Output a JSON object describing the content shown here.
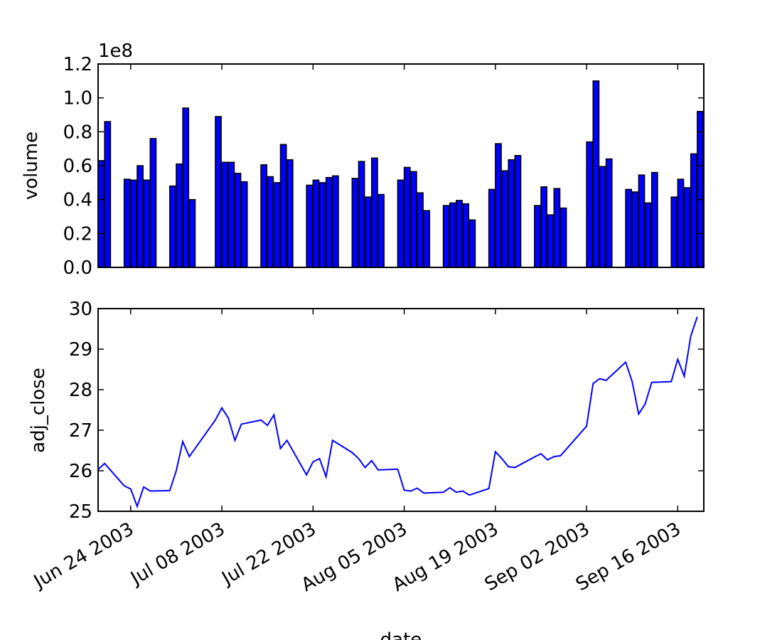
{
  "chart_data": [
    {
      "type": "bar",
      "ylabel": "volume",
      "y_offset_label": "1e8",
      "color": "#0000ff",
      "x": [
        "2003-06-19",
        "2003-06-20",
        "2003-06-23",
        "2003-06-24",
        "2003-06-25",
        "2003-06-26",
        "2003-06-27",
        "2003-06-30",
        "2003-07-01",
        "2003-07-02",
        "2003-07-03",
        "2003-07-07",
        "2003-07-08",
        "2003-07-09",
        "2003-07-10",
        "2003-07-11",
        "2003-07-14",
        "2003-07-15",
        "2003-07-16",
        "2003-07-17",
        "2003-07-18",
        "2003-07-21",
        "2003-07-22",
        "2003-07-23",
        "2003-07-24",
        "2003-07-25",
        "2003-07-28",
        "2003-07-29",
        "2003-07-30",
        "2003-07-31",
        "2003-08-01",
        "2003-08-04",
        "2003-08-05",
        "2003-08-06",
        "2003-08-07",
        "2003-08-08",
        "2003-08-11",
        "2003-08-12",
        "2003-08-13",
        "2003-08-14",
        "2003-08-15",
        "2003-08-18",
        "2003-08-19",
        "2003-08-20",
        "2003-08-21",
        "2003-08-22",
        "2003-08-25",
        "2003-08-26",
        "2003-08-27",
        "2003-08-28",
        "2003-08-29",
        "2003-09-02",
        "2003-09-03",
        "2003-09-04",
        "2003-09-05",
        "2003-09-08",
        "2003-09-09",
        "2003-09-10",
        "2003-09-11",
        "2003-09-12",
        "2003-09-15",
        "2003-09-16",
        "2003-09-17",
        "2003-09-18",
        "2003-09-19"
      ],
      "values": [
        63000000,
        86000000,
        52000000,
        51500000,
        60000000,
        51500000,
        76000000,
        48000000,
        61000000,
        94000000,
        40000000,
        89000000,
        62000000,
        62000000,
        55500000,
        50500000,
        60500000,
        53500000,
        50000000,
        72500000,
        63500000,
        48500000,
        51500000,
        50000000,
        53000000,
        54000000,
        52500000,
        62500000,
        41500000,
        64500000,
        43000000,
        51500000,
        59000000,
        56500000,
        44000000,
        33500000,
        36500000,
        38000000,
        39500000,
        37500000,
        28000000,
        46000000,
        73000000,
        57000000,
        63500000,
        66000000,
        36500000,
        47500000,
        31000000,
        46500000,
        35000000,
        74000000,
        110000000,
        59500000,
        64000000,
        46000000,
        44500000,
        54500000,
        38000000,
        56000000,
        41500000,
        52000000,
        47000000,
        67000000,
        92000000
      ],
      "xlim": [
        "2003-06-19",
        "2003-09-20"
      ],
      "ylim": [
        0,
        120000000
      ],
      "yticks": [
        {
          "value": 0,
          "label": "0.0"
        },
        {
          "value": 20000000,
          "label": "0.2"
        },
        {
          "value": 40000000,
          "label": "0.4"
        },
        {
          "value": 60000000,
          "label": "0.6"
        },
        {
          "value": 80000000,
          "label": "0.8"
        },
        {
          "value": 100000000,
          "label": "1.0"
        },
        {
          "value": 120000000,
          "label": "1.2"
        }
      ]
    },
    {
      "type": "line",
      "ylabel": "adj_close",
      "xlabel": "date",
      "color": "#0000ff",
      "x": [
        "2003-06-19",
        "2003-06-20",
        "2003-06-23",
        "2003-06-24",
        "2003-06-25",
        "2003-06-26",
        "2003-06-27",
        "2003-06-30",
        "2003-07-01",
        "2003-07-02",
        "2003-07-03",
        "2003-07-07",
        "2003-07-08",
        "2003-07-09",
        "2003-07-10",
        "2003-07-11",
        "2003-07-14",
        "2003-07-15",
        "2003-07-16",
        "2003-07-17",
        "2003-07-18",
        "2003-07-21",
        "2003-07-22",
        "2003-07-23",
        "2003-07-24",
        "2003-07-25",
        "2003-07-28",
        "2003-07-29",
        "2003-07-30",
        "2003-07-31",
        "2003-08-01",
        "2003-08-04",
        "2003-08-05",
        "2003-08-06",
        "2003-08-07",
        "2003-08-08",
        "2003-08-11",
        "2003-08-12",
        "2003-08-13",
        "2003-08-14",
        "2003-08-15",
        "2003-08-18",
        "2003-08-19",
        "2003-08-20",
        "2003-08-21",
        "2003-08-22",
        "2003-08-25",
        "2003-08-26",
        "2003-08-27",
        "2003-08-28",
        "2003-08-29",
        "2003-09-02",
        "2003-09-03",
        "2003-09-04",
        "2003-09-05",
        "2003-09-08",
        "2003-09-09",
        "2003-09-10",
        "2003-09-11",
        "2003-09-12",
        "2003-09-15",
        "2003-09-16",
        "2003-09-17",
        "2003-09-18",
        "2003-09-19"
      ],
      "values": [
        26.03,
        26.18,
        25.63,
        25.55,
        25.12,
        25.6,
        25.5,
        25.51,
        26.0,
        26.72,
        26.35,
        27.25,
        27.55,
        27.3,
        26.75,
        27.15,
        27.25,
        27.12,
        27.38,
        26.55,
        26.75,
        25.9,
        26.22,
        26.3,
        25.85,
        26.75,
        26.45,
        26.3,
        26.08,
        26.25,
        26.02,
        26.04,
        25.52,
        25.5,
        25.57,
        25.45,
        25.47,
        25.58,
        25.47,
        25.5,
        25.4,
        25.56,
        26.47,
        26.3,
        26.1,
        26.08,
        26.34,
        26.42,
        26.27,
        26.35,
        26.37,
        27.1,
        28.15,
        28.27,
        28.23,
        28.68,
        28.2,
        27.4,
        27.65,
        28.18,
        28.2,
        28.75,
        28.33,
        29.32,
        29.8
      ],
      "xlim": [
        "2003-06-19",
        "2003-09-20"
      ],
      "ylim": [
        25,
        30
      ],
      "yticks": [
        25,
        26,
        27,
        28,
        29,
        30
      ],
      "xticks": [
        {
          "value": "2003-06-24",
          "label": "Jun 24 2003"
        },
        {
          "value": "2003-07-08",
          "label": "Jul 08 2003"
        },
        {
          "value": "2003-07-22",
          "label": "Jul 22 2003"
        },
        {
          "value": "2003-08-05",
          "label": "Aug 05 2003"
        },
        {
          "value": "2003-08-19",
          "label": "Aug 19 2003"
        },
        {
          "value": "2003-09-02",
          "label": "Sep 02 2003"
        },
        {
          "value": "2003-09-16",
          "label": "Sep 16 2003"
        }
      ]
    }
  ]
}
